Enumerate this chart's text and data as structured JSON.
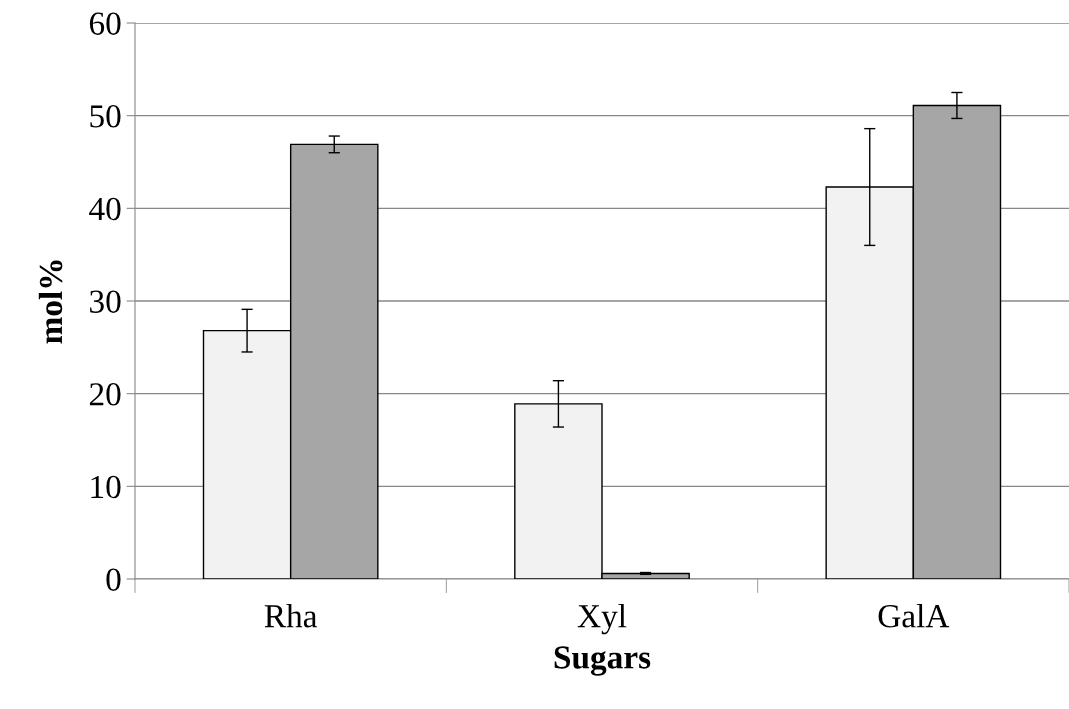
{
  "chart_data": {
    "type": "bar",
    "xlabel": "Sugars",
    "ylabel": "mol%",
    "categories": [
      "Rha",
      "Xyl",
      "GalA"
    ],
    "series": [
      {
        "color": "#f2f2f2",
        "values": [
          26.8,
          18.9,
          42.3
        ],
        "errors": [
          2.3,
          2.5,
          6.3
        ]
      },
      {
        "color": "#a6a6a6",
        "values": [
          46.9,
          0.6,
          51.1
        ],
        "errors": [
          0.9,
          0.1,
          1.4
        ]
      }
    ],
    "ylim": [
      0,
      60
    ],
    "yticks": [
      0,
      10,
      20,
      30,
      40,
      50,
      60
    ],
    "grid": "y",
    "legend": false
  }
}
